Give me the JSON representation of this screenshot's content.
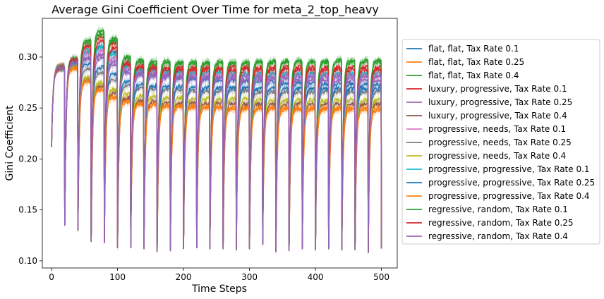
{
  "chart_data": {
    "type": "line",
    "title": "Average Gini Coefficient Over Time for meta_2_top_heavy",
    "xlabel": "Time Steps",
    "ylabel": "Gini Coefficient",
    "xlim": [
      -14,
      524
    ],
    "ylim": [
      0.093,
      0.338
    ],
    "xticks": [
      0,
      100,
      200,
      300,
      400,
      500
    ],
    "yticks": [
      0.1,
      0.15,
      0.2,
      0.25,
      0.3
    ],
    "xtick_labels": [
      "0",
      "100",
      "200",
      "300",
      "400",
      "500"
    ],
    "ytick_labels": [
      "0.10",
      "0.15",
      "0.20",
      "0.25",
      "0.30"
    ],
    "grid": false,
    "legend_position": "outside-right",
    "shaded_band": "confidence interval around each mean line",
    "pattern": {
      "start_value": 0.213,
      "initial_rise_to": 0.29,
      "reset_period": 20,
      "x_max": 500,
      "reset_minima": [
        0.135,
        0.13,
        0.119,
        0.118,
        0.113,
        0.113,
        0.112,
        0.109,
        0.11,
        0.112,
        0.113,
        0.112,
        0.112,
        0.111,
        0.112,
        0.116,
        0.109,
        0.11,
        0.112,
        0.111,
        0.112,
        0.111,
        0.111,
        0.108,
        0.112
      ]
    },
    "series": [
      {
        "name": "flat, flat, Tax Rate 0.1",
        "color": "#1f77b4",
        "peak_values": [
          0.296,
          0.305,
          0.31,
          0.305,
          0.292,
          0.285,
          0.283,
          0.282,
          0.28,
          0.279,
          0.279,
          0.278,
          0.277,
          0.277,
          0.276,
          0.276,
          0.275,
          0.275,
          0.275,
          0.274,
          0.274,
          0.274,
          0.273,
          0.273,
          0.273
        ]
      },
      {
        "name": "flat, flat, Tax Rate 0.25",
        "color": "#ff7f0e",
        "peak_values": [
          0.29,
          0.277,
          0.27,
          0.262,
          0.258,
          0.255,
          0.254,
          0.253,
          0.252,
          0.252,
          0.251,
          0.251,
          0.25,
          0.25,
          0.25,
          0.25,
          0.249,
          0.249,
          0.249,
          0.249,
          0.249,
          0.248,
          0.248,
          0.248,
          0.248
        ]
      },
      {
        "name": "flat, flat, Tax Rate 0.4",
        "color": "#2ca02c",
        "peak_values": [
          0.298,
          0.316,
          0.325,
          0.318,
          0.3,
          0.297,
          0.296,
          0.296,
          0.295,
          0.295,
          0.295,
          0.295,
          0.295,
          0.295,
          0.296,
          0.296,
          0.296,
          0.296,
          0.296,
          0.296,
          0.297,
          0.297,
          0.297,
          0.297,
          0.297
        ]
      },
      {
        "name": "luxury, progressive, Tax Rate 0.1",
        "color": "#d62728",
        "peak_values": [
          0.297,
          0.312,
          0.32,
          0.314,
          0.295,
          0.292,
          0.291,
          0.29,
          0.29,
          0.29,
          0.29,
          0.29,
          0.29,
          0.29,
          0.29,
          0.29,
          0.29,
          0.29,
          0.29,
          0.29,
          0.29,
          0.29,
          0.29,
          0.29,
          0.29
        ]
      },
      {
        "name": "luxury, progressive, Tax Rate 0.25",
        "color": "#9467bd",
        "peak_values": [
          0.295,
          0.298,
          0.299,
          0.293,
          0.285,
          0.282,
          0.281,
          0.28,
          0.28,
          0.279,
          0.279,
          0.279,
          0.279,
          0.278,
          0.278,
          0.278,
          0.278,
          0.278,
          0.278,
          0.278,
          0.278,
          0.278,
          0.278,
          0.278,
          0.278
        ]
      },
      {
        "name": "luxury, progressive, Tax Rate 0.4",
        "color": "#8c564b",
        "peak_values": [
          0.29,
          0.278,
          0.272,
          0.265,
          0.26,
          0.258,
          0.257,
          0.256,
          0.256,
          0.255,
          0.255,
          0.255,
          0.255,
          0.254,
          0.254,
          0.254,
          0.254,
          0.254,
          0.254,
          0.254,
          0.254,
          0.254,
          0.254,
          0.254,
          0.254
        ]
      },
      {
        "name": "progressive, needs, Tax Rate 0.1",
        "color": "#e377c2",
        "peak_values": [
          0.296,
          0.304,
          0.306,
          0.3,
          0.29,
          0.287,
          0.286,
          0.285,
          0.285,
          0.284,
          0.284,
          0.284,
          0.284,
          0.284,
          0.283,
          0.283,
          0.283,
          0.283,
          0.283,
          0.283,
          0.283,
          0.283,
          0.283,
          0.283,
          0.283
        ]
      },
      {
        "name": "progressive, needs, Tax Rate 0.25",
        "color": "#7f7f7f",
        "peak_values": [
          0.292,
          0.288,
          0.285,
          0.278,
          0.272,
          0.27,
          0.269,
          0.268,
          0.268,
          0.267,
          0.267,
          0.267,
          0.267,
          0.267,
          0.266,
          0.266,
          0.266,
          0.266,
          0.266,
          0.266,
          0.266,
          0.266,
          0.266,
          0.266,
          0.266
        ]
      },
      {
        "name": "progressive, needs, Tax Rate 0.4",
        "color": "#bcbd22",
        "peak_values": [
          0.29,
          0.28,
          0.275,
          0.268,
          0.264,
          0.262,
          0.261,
          0.26,
          0.26,
          0.259,
          0.259,
          0.259,
          0.259,
          0.259,
          0.258,
          0.258,
          0.258,
          0.258,
          0.258,
          0.258,
          0.258,
          0.258,
          0.258,
          0.258,
          0.258
        ]
      },
      {
        "name": "progressive, progressive, Tax Rate 0.1",
        "color": "#17becf",
        "peak_values": [
          0.297,
          0.307,
          0.31,
          0.303,
          0.291,
          0.288,
          0.287,
          0.286,
          0.286,
          0.285,
          0.285,
          0.285,
          0.285,
          0.284,
          0.284,
          0.284,
          0.284,
          0.284,
          0.284,
          0.284,
          0.284,
          0.284,
          0.284,
          0.284,
          0.284
        ]
      },
      {
        "name": "progressive, progressive, Tax Rate 0.25",
        "color": "#1f77b4",
        "peak_values": [
          0.294,
          0.293,
          0.29,
          0.283,
          0.276,
          0.273,
          0.272,
          0.271,
          0.271,
          0.27,
          0.27,
          0.27,
          0.27,
          0.27,
          0.269,
          0.269,
          0.269,
          0.269,
          0.269,
          0.269,
          0.269,
          0.269,
          0.269,
          0.269,
          0.269
        ]
      },
      {
        "name": "progressive, progressive, Tax Rate 0.4",
        "color": "#ff7f0e",
        "peak_values": [
          0.289,
          0.276,
          0.268,
          0.26,
          0.256,
          0.254,
          0.253,
          0.252,
          0.252,
          0.251,
          0.251,
          0.251,
          0.251,
          0.25,
          0.25,
          0.25,
          0.25,
          0.25,
          0.25,
          0.25,
          0.25,
          0.25,
          0.25,
          0.25,
          0.25
        ]
      },
      {
        "name": "regressive, random, Tax Rate 0.1",
        "color": "#2ca02c",
        "peak_values": [
          0.298,
          0.315,
          0.322,
          0.316,
          0.298,
          0.295,
          0.294,
          0.294,
          0.294,
          0.294,
          0.294,
          0.294,
          0.294,
          0.294,
          0.295,
          0.295,
          0.295,
          0.295,
          0.295,
          0.295,
          0.295,
          0.295,
          0.295,
          0.295,
          0.295
        ]
      },
      {
        "name": "regressive, random, Tax Rate 0.25",
        "color": "#d62728",
        "peak_values": [
          0.297,
          0.31,
          0.315,
          0.309,
          0.293,
          0.29,
          0.289,
          0.288,
          0.288,
          0.288,
          0.288,
          0.288,
          0.288,
          0.288,
          0.288,
          0.288,
          0.288,
          0.288,
          0.288,
          0.288,
          0.288,
          0.288,
          0.288,
          0.288,
          0.288
        ]
      },
      {
        "name": "regressive, random, Tax Rate 0.4",
        "color": "#9467bd",
        "peak_values": [
          0.295,
          0.3,
          0.302,
          0.296,
          0.287,
          0.284,
          0.283,
          0.282,
          0.282,
          0.281,
          0.281,
          0.281,
          0.281,
          0.281,
          0.281,
          0.281,
          0.281,
          0.281,
          0.281,
          0.281,
          0.281,
          0.281,
          0.281,
          0.281,
          0.281
        ]
      }
    ]
  }
}
